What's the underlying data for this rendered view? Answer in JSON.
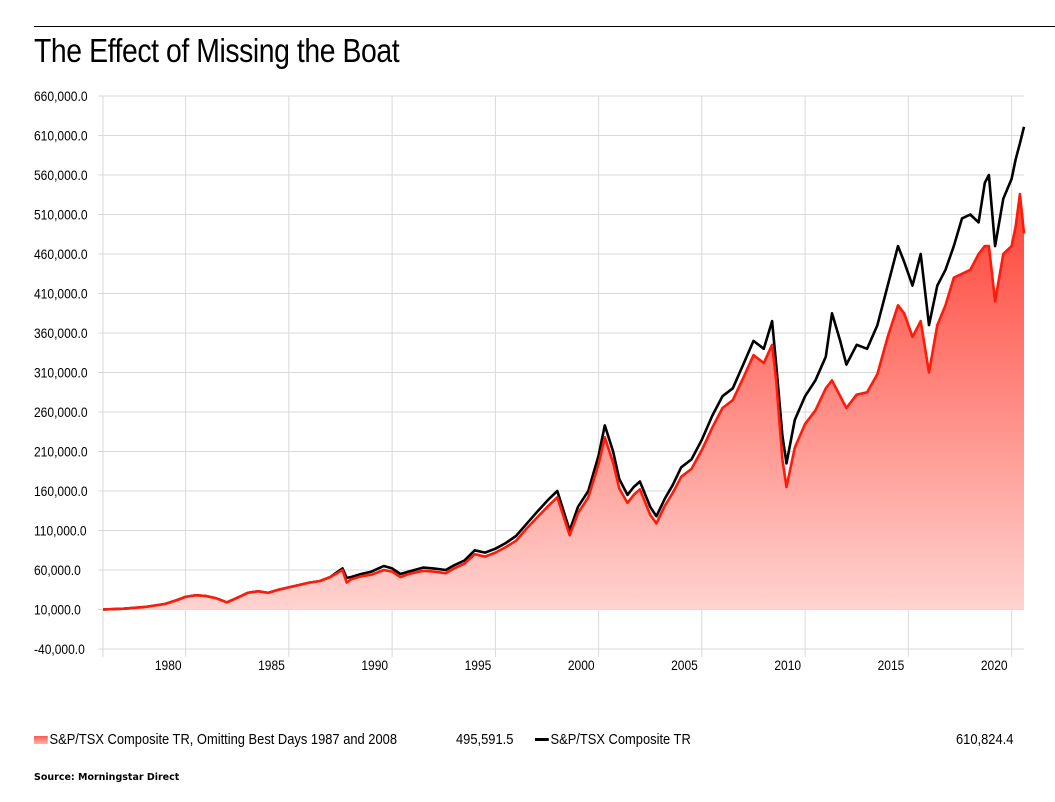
{
  "header": {
    "title": "The Effect of Missing the Boat"
  },
  "legend": {
    "items": [
      {
        "label": "S&P/TSX Composite TR, Omitting Best Days 1987 and 2008",
        "value": "495,591.5",
        "color": "#ff1a0a",
        "swatch": "area"
      },
      {
        "label": "S&P/TSX Composite TR",
        "value": "610,824.4",
        "color": "#000000",
        "swatch": "line"
      }
    ]
  },
  "footer": {
    "source": "Source: Morningstar Direct"
  },
  "chart_data": {
    "type": "area",
    "title": "The Effect of Missing the Boat",
    "xlabel": "",
    "ylabel": "",
    "xlim": [
      1976.0,
      2020.6
    ],
    "ylim": [
      -40000,
      660000
    ],
    "y_ticks": [
      -40000,
      10000,
      60000,
      110000,
      160000,
      210000,
      260000,
      310000,
      360000,
      410000,
      460000,
      510000,
      560000,
      610000,
      660000
    ],
    "y_tick_labels": [
      "-40,000.0",
      "10,000.0",
      "60,000.0",
      "110,000.0",
      "160,000.0",
      "210,000.0",
      "260,000.0",
      "310,000.0",
      "360,000.0",
      "410,000.0",
      "460,000.0",
      "510,000.0",
      "560,000.0",
      "610,000.0",
      "660,000.0"
    ],
    "x_ticks": [
      1980,
      1985,
      1990,
      1995,
      2000,
      2005,
      2010,
      2015,
      2020
    ],
    "x_tick_labels": [
      "1980",
      "1985",
      "1990",
      "1995",
      "2000",
      "2005",
      "2010",
      "2015",
      "2020"
    ],
    "grid": true,
    "legend_position": "bottom",
    "baseline": 10000,
    "series": [
      {
        "name": "S&P/TSX Composite TR",
        "style": "line",
        "color": "#000000",
        "end_value": 610824.4,
        "x": [
          1976.0,
          1977.0,
          1978.0,
          1979.0,
          1979.6,
          1980.0,
          1980.5,
          1981.0,
          1981.5,
          1982.0,
          1982.6,
          1983.0,
          1983.5,
          1984.0,
          1984.5,
          1985.0,
          1985.5,
          1986.0,
          1986.5,
          1987.0,
          1987.6,
          1987.8,
          1988.0,
          1988.5,
          1989.0,
          1989.6,
          1990.0,
          1990.4,
          1990.8,
          1991.5,
          1992.0,
          1992.6,
          1993.0,
          1993.5,
          1994.0,
          1994.5,
          1995.0,
          1995.5,
          1996.0,
          1996.5,
          1997.0,
          1997.6,
          1998.0,
          1998.6,
          1999.0,
          1999.5,
          2000.0,
          2000.3,
          2000.7,
          2001.0,
          2001.4,
          2001.7,
          2002.0,
          2002.5,
          2002.8,
          2003.2,
          2003.6,
          2004.0,
          2004.5,
          2005.0,
          2005.5,
          2006.0,
          2006.5,
          2007.0,
          2007.5,
          2008.0,
          2008.4,
          2008.6,
          2008.9,
          2009.1,
          2009.5,
          2010.0,
          2010.5,
          2011.0,
          2011.3,
          2011.7,
          2012.0,
          2012.5,
          2013.0,
          2013.5,
          2014.0,
          2014.5,
          2014.8,
          2015.2,
          2015.6,
          2016.0,
          2016.4,
          2016.8,
          2017.2,
          2017.6,
          2018.0,
          2018.4,
          2018.7,
          2018.9,
          2019.2,
          2019.6,
          2020.0,
          2020.2,
          2020.4,
          2020.6
        ],
        "y": [
          10000,
          11000,
          13000,
          17000,
          22000,
          26000,
          28000,
          27000,
          24000,
          19000,
          26000,
          31000,
          33000,
          31000,
          35000,
          38000,
          41000,
          44000,
          46000,
          51000,
          62000,
          50000,
          51000,
          55000,
          58000,
          65000,
          62000,
          55000,
          58000,
          63000,
          62000,
          60000,
          66000,
          72000,
          85000,
          82000,
          87000,
          94000,
          103000,
          118000,
          133000,
          150000,
          160000,
          110000,
          140000,
          160000,
          205000,
          243000,
          210000,
          175000,
          155000,
          165000,
          172000,
          140000,
          128000,
          150000,
          168000,
          190000,
          200000,
          225000,
          255000,
          280000,
          290000,
          320000,
          350000,
          340000,
          375000,
          320000,
          230000,
          195000,
          250000,
          280000,
          300000,
          330000,
          385000,
          350000,
          320000,
          345000,
          340000,
          370000,
          420000,
          470000,
          450000,
          420000,
          460000,
          370000,
          420000,
          440000,
          470000,
          505000,
          510000,
          500000,
          550000,
          560000,
          470000,
          530000,
          555000,
          580000,
          600000,
          621000
        ]
      },
      {
        "name": "S&P/TSX Composite TR, Omitting Best Days 1987 and 2008",
        "style": "area",
        "color": "#ff1a0a",
        "end_value": 495591.5,
        "x": [
          1976.0,
          1977.0,
          1978.0,
          1979.0,
          1979.6,
          1980.0,
          1980.5,
          1981.0,
          1981.5,
          1982.0,
          1982.6,
          1983.0,
          1983.5,
          1984.0,
          1984.5,
          1985.0,
          1985.5,
          1986.0,
          1986.5,
          1987.0,
          1987.6,
          1987.8,
          1988.0,
          1988.5,
          1989.0,
          1989.6,
          1990.0,
          1990.4,
          1990.8,
          1991.5,
          1992.0,
          1992.6,
          1993.0,
          1993.5,
          1994.0,
          1994.5,
          1995.0,
          1995.5,
          1996.0,
          1996.5,
          1997.0,
          1997.6,
          1998.0,
          1998.6,
          1999.0,
          1999.5,
          2000.0,
          2000.3,
          2000.7,
          2001.0,
          2001.4,
          2001.7,
          2002.0,
          2002.5,
          2002.8,
          2003.2,
          2003.6,
          2004.0,
          2004.5,
          2005.0,
          2005.5,
          2006.0,
          2006.5,
          2007.0,
          2007.5,
          2008.0,
          2008.4,
          2008.6,
          2008.9,
          2009.1,
          2009.5,
          2010.0,
          2010.5,
          2011.0,
          2011.3,
          2011.7,
          2012.0,
          2012.5,
          2013.0,
          2013.5,
          2014.0,
          2014.5,
          2014.8,
          2015.2,
          2015.6,
          2016.0,
          2016.4,
          2016.8,
          2017.2,
          2017.6,
          2018.0,
          2018.4,
          2018.7,
          2018.9,
          2019.2,
          2019.6,
          2020.0,
          2020.2,
          2020.4,
          2020.6
        ],
        "y": [
          10000,
          11000,
          13000,
          17000,
          22000,
          26000,
          28000,
          27000,
          24000,
          19000,
          26000,
          31000,
          33000,
          31000,
          35000,
          38000,
          41000,
          44000,
          46000,
          51000,
          60000,
          44000,
          48000,
          52000,
          54000,
          60000,
          58000,
          51000,
          55000,
          59000,
          58000,
          56000,
          62000,
          68000,
          80000,
          77000,
          82000,
          89000,
          97000,
          112000,
          126000,
          142000,
          152000,
          104000,
          132000,
          152000,
          194000,
          228000,
          196000,
          163000,
          145000,
          155000,
          162000,
          130000,
          119000,
          141000,
          158000,
          178000,
          188000,
          212000,
          240000,
          265000,
          275000,
          303000,
          332000,
          322000,
          345000,
          300000,
          200000,
          165000,
          215000,
          245000,
          262000,
          290000,
          300000,
          280000,
          265000,
          282000,
          285000,
          308000,
          355000,
          395000,
          385000,
          355000,
          375000,
          310000,
          370000,
          395000,
          430000,
          435000,
          440000,
          460000,
          470000,
          470000,
          400000,
          460000,
          470000,
          495000,
          536000,
          486000
        ]
      }
    ]
  }
}
